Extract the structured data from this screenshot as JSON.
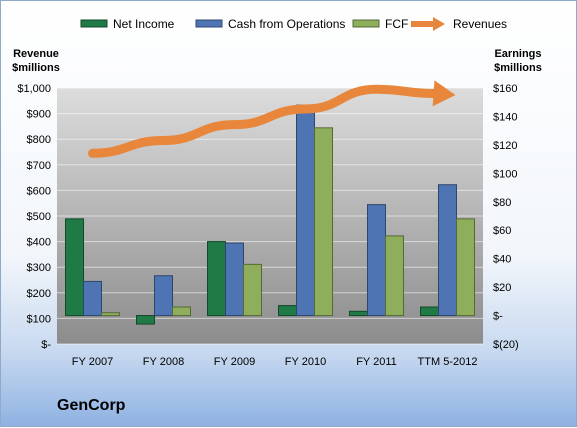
{
  "company": "GenCorp",
  "chart_data": {
    "type": "bar",
    "categories": [
      "FY 2007",
      "FY 2008",
      "FY 2009",
      "FY 2010",
      "FY 2011",
      "TTM 5-2012"
    ],
    "left_axis": {
      "label_line1": "Revenue",
      "label_line2": "$millions",
      "min": 0,
      "max": 1000,
      "step": 100,
      "tick_labels": [
        "$-",
        "$100",
        "$200",
        "$300",
        "$400",
        "$500",
        "$600",
        "$700",
        "$800",
        "$900",
        "$1,000"
      ]
    },
    "right_axis": {
      "label_line1": "Earnings",
      "label_line2": "$millions",
      "min": -20,
      "max": 160,
      "step": 20,
      "tick_labels": [
        "$(20)",
        "$-",
        "$20",
        "$40",
        "$60",
        "$80",
        "$100",
        "$120",
        "$140",
        "$160"
      ]
    },
    "series": [
      {
        "name": "Net Income",
        "kind": "bar",
        "axis": "right",
        "color": "#1f7a45",
        "values": [
          68,
          -6,
          52,
          7,
          3,
          6
        ]
      },
      {
        "name": "Cash from Operations",
        "kind": "bar",
        "axis": "right",
        "color": "#4f74b4",
        "values": [
          24,
          28,
          51,
          148,
          78,
          92
        ]
      },
      {
        "name": "FCF",
        "kind": "bar",
        "axis": "right",
        "color": "#8fae5b",
        "values": [
          2,
          6,
          36,
          132,
          56,
          68
        ]
      },
      {
        "name": "Revenues",
        "kind": "line",
        "axis": "left",
        "color": "#e8873c",
        "values": [
          745,
          795,
          857,
          918,
          995,
          975
        ]
      }
    ],
    "legend_position": "top",
    "grid": true
  }
}
